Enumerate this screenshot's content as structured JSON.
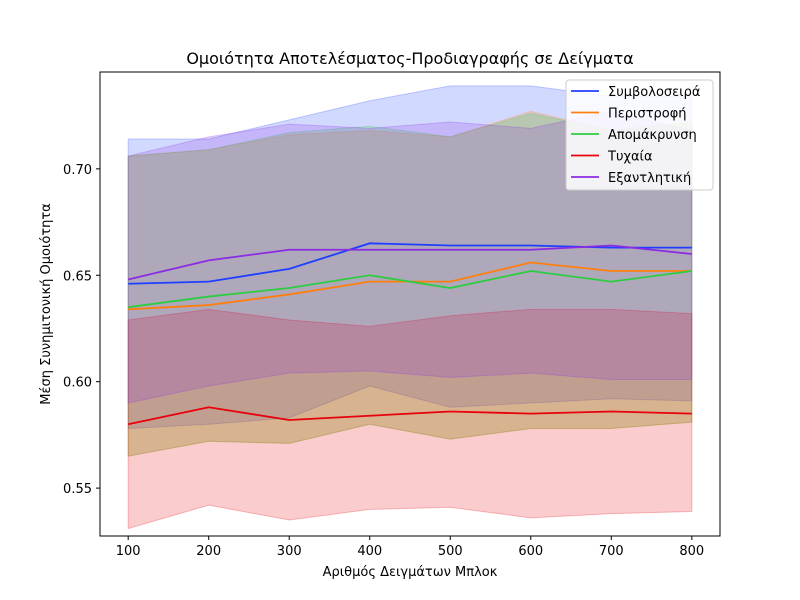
{
  "chart_data": {
    "type": "line",
    "title": "Ομοιότητα Αποτελέσματος-Προδιαγραφής σε Δείγματα",
    "xlabel": "Αριθμός Δειγμάτων Μπλοκ",
    "ylabel": "Μέση Συνημιτονική Ομοιότητα",
    "x": [
      100,
      200,
      300,
      400,
      500,
      600,
      700,
      800
    ],
    "xlim": [
      65,
      835
    ],
    "ylim": [
      0.5275,
      0.7455
    ],
    "xticks": [
      100,
      200,
      300,
      400,
      500,
      600,
      700,
      800
    ],
    "yticks": [
      0.55,
      0.6,
      0.65,
      0.7
    ],
    "ytick_labels": [
      "0.55",
      "0.60",
      "0.65",
      "0.70"
    ],
    "legend_position": "top-right",
    "series": [
      {
        "name": "Συμβολοσειρά",
        "color": "#1f3fff",
        "values": [
          0.646,
          0.647,
          0.653,
          0.665,
          0.664,
          0.664,
          0.663,
          0.663
        ],
        "lower": [
          0.578,
          0.58,
          0.583,
          0.598,
          0.588,
          0.59,
          0.592,
          0.591
        ],
        "upper": [
          0.714,
          0.714,
          0.723,
          0.732,
          0.739,
          0.739,
          0.734,
          0.734
        ]
      },
      {
        "name": "Περιστροφή",
        "color": "#ff7f0e",
        "values": [
          0.634,
          0.636,
          0.641,
          0.647,
          0.647,
          0.656,
          0.652,
          0.652
        ],
        "lower": [
          0.565,
          0.572,
          0.571,
          0.58,
          0.573,
          0.578,
          0.578,
          0.581
        ],
        "upper": [
          0.706,
          0.709,
          0.716,
          0.718,
          0.715,
          0.727,
          0.718,
          0.722
        ]
      },
      {
        "name": "Απομάκρυνση",
        "color": "#2ecc40",
        "values": [
          0.635,
          0.64,
          0.644,
          0.65,
          0.644,
          0.652,
          0.647,
          0.652
        ],
        "lower": [
          0.565,
          0.572,
          0.571,
          0.58,
          0.573,
          0.578,
          0.578,
          0.581
        ],
        "upper": [
          0.706,
          0.709,
          0.717,
          0.72,
          0.715,
          0.726,
          0.718,
          0.722
        ]
      },
      {
        "name": "Τυχαία",
        "color": "#e8000b",
        "values": [
          0.58,
          0.588,
          0.582,
          0.584,
          0.586,
          0.585,
          0.586,
          0.585
        ],
        "lower": [
          0.531,
          0.542,
          0.535,
          0.54,
          0.541,
          0.536,
          0.538,
          0.539
        ],
        "upper": [
          0.629,
          0.634,
          0.629,
          0.626,
          0.631,
          0.634,
          0.634,
          0.632
        ]
      },
      {
        "name": "Εξαντλητική",
        "color": "#8b2be2",
        "values": [
          0.648,
          0.657,
          0.662,
          0.662,
          0.662,
          0.662,
          0.664,
          0.66
        ],
        "lower": [
          0.59,
          0.598,
          0.604,
          0.605,
          0.602,
          0.604,
          0.601,
          0.601
        ],
        "upper": [
          0.706,
          0.715,
          0.721,
          0.719,
          0.722,
          0.719,
          0.727,
          0.718
        ]
      }
    ]
  }
}
